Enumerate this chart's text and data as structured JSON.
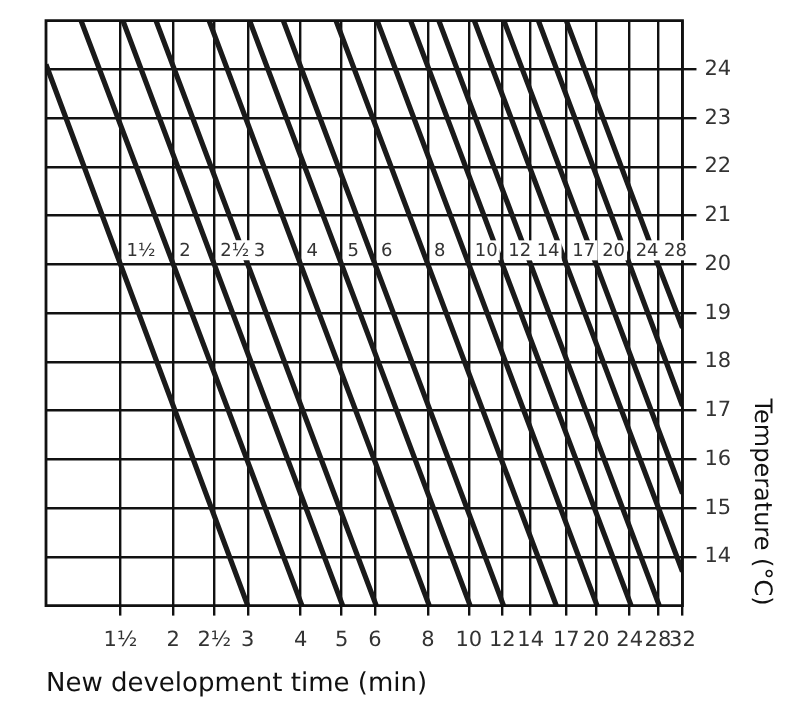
{
  "chart_data": {
    "type": "line",
    "xlabel": "New development time (min)",
    "ylabel": "Temperature (°C)",
    "log": "x",
    "grid": true,
    "legend": false,
    "marker": "none",
    "line_style": "solid",
    "xlim": [
      1,
      32
    ],
    "xticks": [
      {
        "value": 1.5,
        "label": "1½"
      },
      {
        "value": 2,
        "label": "2"
      },
      {
        "value": 2.5,
        "label": "2½"
      },
      {
        "value": 3,
        "label": "3"
      },
      {
        "value": 4,
        "label": "4"
      },
      {
        "value": 5,
        "label": "5"
      },
      {
        "value": 6,
        "label": "6"
      },
      {
        "value": 8,
        "label": "8"
      },
      {
        "value": 10,
        "label": "10"
      },
      {
        "value": 12,
        "label": "12"
      },
      {
        "value": 14,
        "label": "14"
      },
      {
        "value": 17,
        "label": "17"
      },
      {
        "value": 20,
        "label": "20"
      },
      {
        "value": 24,
        "label": "24"
      },
      {
        "value": 28,
        "label": "28"
      },
      {
        "value": 32,
        "label": "32"
      }
    ],
    "ylim": [
      13,
      25
    ],
    "yticks": [
      14,
      15,
      16,
      17,
      18,
      19,
      20,
      21,
      22,
      23,
      24
    ],
    "series": [
      {
        "color": "#1a1a1a",
        "x": [
          1,
          1.5,
          3.0
        ],
        "values": [
          24.1,
          20,
          13
        ]
      },
      {
        "color": "#1a1a1a",
        "x": [
          1.21,
          2,
          4.03
        ],
        "values": [
          25,
          20,
          13
        ]
      },
      {
        "color": "#1a1a1a",
        "x": [
          1.52,
          2.5,
          5.03
        ],
        "values": [
          25,
          20,
          13
        ]
      },
      {
        "color": "#1a1a1a",
        "x": [
          1.82,
          3,
          6.04
        ],
        "values": [
          25,
          20,
          13
        ]
      },
      {
        "color": "#1a1a1a",
        "x": [
          2.43,
          4,
          8.06
        ],
        "values": [
          25,
          20,
          13
        ]
      },
      {
        "color": "#1a1a1a",
        "x": [
          3.03,
          5,
          10.07
        ],
        "values": [
          25,
          20,
          13
        ]
      },
      {
        "color": "#1a1a1a",
        "x": [
          3.64,
          6,
          12.08
        ],
        "values": [
          25,
          20,
          13
        ]
      },
      {
        "color": "#1a1a1a",
        "x": [
          4.85,
          8,
          16.1
        ],
        "values": [
          25,
          20,
          13
        ]
      },
      {
        "color": "#1a1a1a",
        "x": [
          6.07,
          10,
          20.1
        ],
        "values": [
          25,
          20,
          13
        ]
      },
      {
        "color": "#1a1a1a",
        "x": [
          7.28,
          12,
          24.2
        ],
        "values": [
          25,
          20,
          13
        ]
      },
      {
        "color": "#1a1a1a",
        "x": [
          8.49,
          14,
          28.2
        ],
        "values": [
          25,
          20,
          13
        ]
      },
      {
        "color": "#1a1a1a",
        "x": [
          10.3,
          17,
          32
        ],
        "values": [
          25,
          20,
          13.7
        ]
      },
      {
        "color": "#1a1a1a",
        "x": [
          12.1,
          20,
          32
        ],
        "values": [
          25,
          20,
          15.3
        ]
      },
      {
        "color": "#1a1a1a",
        "x": [
          14.6,
          24,
          32
        ],
        "values": [
          25,
          20,
          17.1
        ]
      },
      {
        "color": "#1a1a1a",
        "x": [
          17.0,
          28,
          32
        ],
        "values": [
          25,
          20,
          18.7
        ]
      }
    ],
    "annotations": [
      {
        "text": "1½",
        "x": 1.5,
        "y": 20
      },
      {
        "text": "2",
        "x": 2,
        "y": 20
      },
      {
        "text": "2½",
        "x": 2.5,
        "y": 20
      },
      {
        "text": "3",
        "x": 3,
        "y": 20
      },
      {
        "text": "4",
        "x": 4,
        "y": 20
      },
      {
        "text": "5",
        "x": 5,
        "y": 20
      },
      {
        "text": "6",
        "x": 6,
        "y": 20
      },
      {
        "text": "8",
        "x": 8,
        "y": 20
      },
      {
        "text": "10",
        "x": 10,
        "y": 20
      },
      {
        "text": "12",
        "x": 12,
        "y": 20
      },
      {
        "text": "14",
        "x": 14,
        "y": 20
      },
      {
        "text": "17",
        "x": 17,
        "y": 20
      },
      {
        "text": "20",
        "x": 20,
        "y": 20
      },
      {
        "text": "24",
        "x": 24,
        "y": 20
      },
      {
        "text": "28",
        "x": 28,
        "y": 20
      }
    ]
  }
}
